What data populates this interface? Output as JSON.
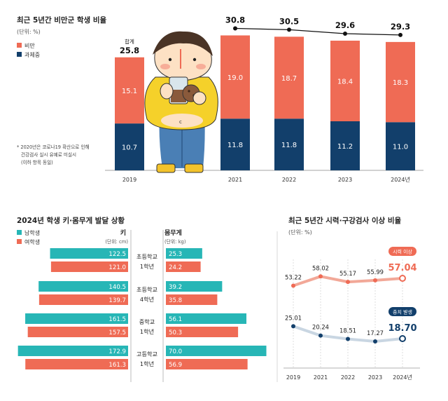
{
  "colors": {
    "obese": "#ef6b55",
    "overweight": "#123f6b",
    "boy": "#27b6b6",
    "girl": "#ef6b55",
    "vision": "#f2a898",
    "vision_dot": "#ef6b55",
    "cavity": "#c9d6e2",
    "cavity_dot": "#123f6b",
    "line": "#111111"
  },
  "chart_data": [
    {
      "type": "bar",
      "stacked": true,
      "title": "최근 5년간 비만군 학생 비율",
      "unit": "(단위: %)",
      "categories": [
        "2019",
        "2021",
        "2022",
        "2023",
        "2024년"
      ],
      "series": [
        {
          "name": "비만",
          "values": [
            15.1,
            19.0,
            18.7,
            18.4,
            18.3
          ]
        },
        {
          "name": "과체중",
          "values": [
            10.7,
            11.8,
            11.8,
            11.2,
            11.0
          ]
        }
      ],
      "totals": [
        "25.8",
        "30.8",
        "30.5",
        "29.6",
        "29.3"
      ],
      "total_label": "합계",
      "ylim": [
        0,
        32
      ],
      "note": [
        "* 2020년은 코로나19 확산으로 인해",
        "건강검사 실시 유예로 미실시",
        "(이하 항목 동일)"
      ]
    },
    {
      "type": "bar",
      "orientation": "horizontal",
      "title": "2024년 학생 키·몸무게 발달 상황",
      "legend": [
        "남학생",
        "여학생"
      ],
      "height_header": "키",
      "height_unit": "(단위: cm)",
      "weight_header": "몸무게",
      "weight_unit": "(단위: kg)",
      "groups": [
        {
          "label1": "초등학교",
          "label2": "1학년",
          "height": [
            122.5,
            121.0
          ],
          "weight": [
            25.3,
            24.2
          ]
        },
        {
          "label1": "초등학교",
          "label2": "4학년",
          "height": [
            140.5,
            139.7
          ],
          "weight": [
            39.2,
            35.8
          ]
        },
        {
          "label1": "중학교",
          "label2": "1학년",
          "height": [
            161.5,
            157.5
          ],
          "weight": [
            56.1,
            50.3
          ]
        },
        {
          "label1": "고등학교",
          "label2": "1학년",
          "height": [
            172.9,
            161.3
          ],
          "weight": [
            70.0,
            56.9
          ]
        }
      ]
    },
    {
      "type": "line",
      "title": "최근 5년간 시력·구강검사 이상 비율",
      "unit": "(단위: %)",
      "categories": [
        "2019",
        "2021",
        "2022",
        "2023",
        "2024년"
      ],
      "series": [
        {
          "name": "시력 이상",
          "values": [
            53.22,
            58.02,
            55.17,
            55.99,
            57.04
          ]
        },
        {
          "name": "충치 발생",
          "values": [
            25.01,
            20.24,
            18.51,
            17.27,
            18.7
          ]
        }
      ]
    }
  ]
}
